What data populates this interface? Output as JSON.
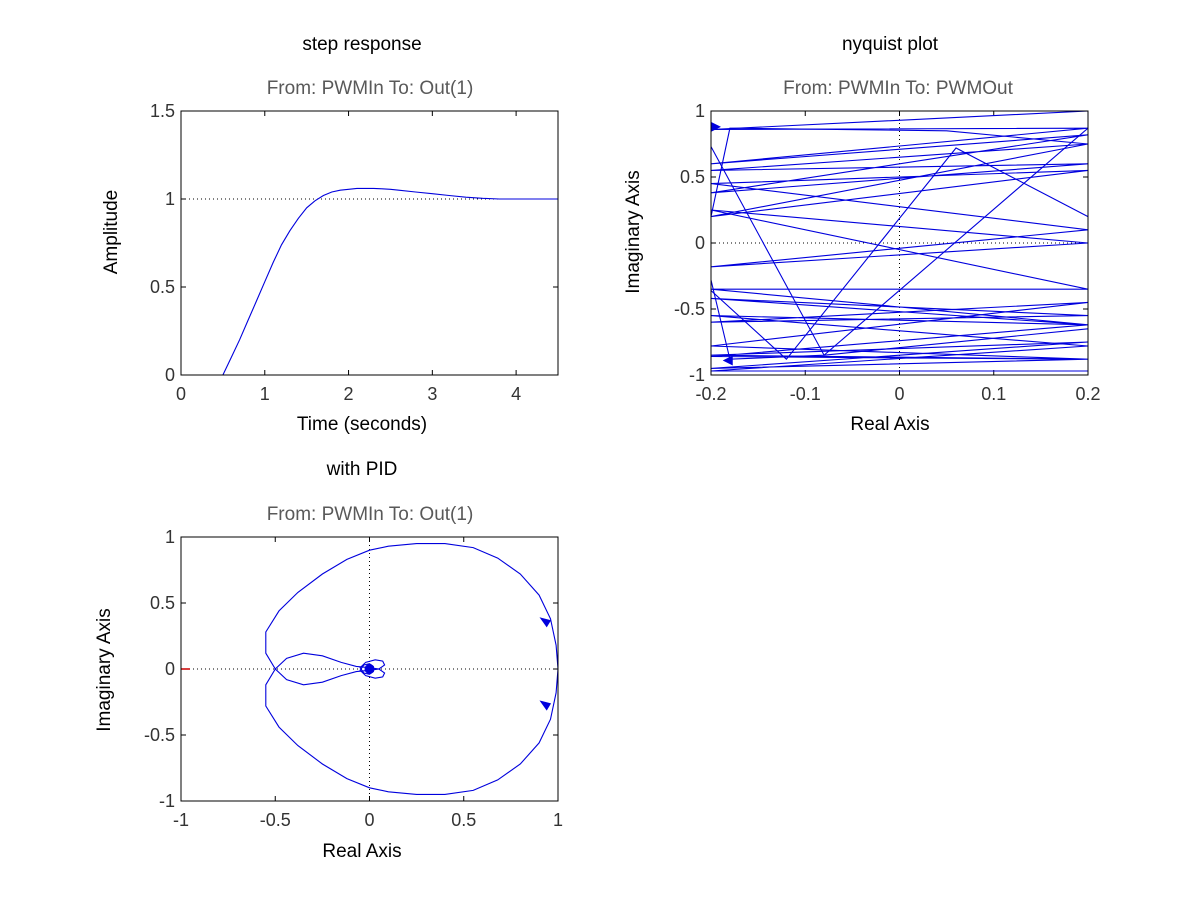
{
  "colors": {
    "background": "#ffffff",
    "axes_frame": "#000000",
    "curve": "#0000dd",
    "reference_line": "#000000",
    "subtitle_text": "#595959",
    "critical_point": "#cc0000"
  },
  "chart_data": [
    {
      "id": "step",
      "type": "line",
      "title": "step response",
      "subtitle": "From: PWMIn  To: Out(1)",
      "xlabel": "Time (seconds)",
      "ylabel": "Amplitude",
      "xlim": [
        0,
        4.5
      ],
      "ylim": [
        0,
        1.5
      ],
      "xticks": [
        0,
        1,
        2,
        3,
        4
      ],
      "xticklabels": [
        "0",
        "1",
        "2",
        "3",
        "4"
      ],
      "yticks": [
        0,
        0.5,
        1,
        1.5
      ],
      "yticklabels": [
        "0",
        "0.5",
        "1",
        "1.5"
      ],
      "grid": false,
      "reference_lines": [
        {
          "axis": "y",
          "value": 1,
          "style": "dotted"
        }
      ],
      "series": [
        {
          "x": [
            0,
            0.5,
            0.6,
            0.7,
            0.8,
            0.9,
            1.0,
            1.1,
            1.2,
            1.3,
            1.4,
            1.5,
            1.6,
            1.7,
            1.8,
            1.9,
            2.0,
            2.1,
            2.2,
            2.3,
            2.4,
            2.5,
            2.6,
            2.8,
            3.0,
            3.2,
            3.4,
            3.6,
            3.8,
            4.0,
            4.5
          ],
          "y": [
            0,
            0,
            0.1,
            0.2,
            0.31,
            0.42,
            0.53,
            0.64,
            0.74,
            0.82,
            0.89,
            0.95,
            0.99,
            1.02,
            1.04,
            1.05,
            1.055,
            1.06,
            1.06,
            1.06,
            1.058,
            1.055,
            1.05,
            1.04,
            1.03,
            1.02,
            1.01,
            1.004,
            1.0,
            1.0,
            1.0
          ]
        }
      ]
    },
    {
      "id": "nyquist",
      "type": "line",
      "title": "nyquist plot",
      "subtitle": "From: PWMIn  To: PWMOut",
      "xlabel": "Real Axis",
      "ylabel": "Imaginary Axis",
      "xlim": [
        -0.2,
        0.2
      ],
      "ylim": [
        -1,
        1
      ],
      "xticks": [
        -0.2,
        -0.1,
        0,
        0.1,
        0.2
      ],
      "xticklabels": [
        "-0.2",
        "-0.1",
        "0",
        "0.1",
        "0.2"
      ],
      "yticks": [
        -1,
        -0.5,
        0,
        0.5,
        1
      ],
      "yticklabels": [
        "-1",
        "-0.5",
        "0",
        "0.5",
        "1"
      ],
      "grid": false,
      "reference_lines": [
        {
          "axis": "x",
          "value": 0,
          "style": "dotted"
        },
        {
          "axis": "y",
          "value": 0,
          "style": "dotted"
        }
      ],
      "series": [
        {
          "x": [
            0.2,
            -0.2,
            0.2,
            -0.2,
            0.2,
            -0.2,
            0.2,
            -0.2,
            0.2,
            -0.2,
            0.2,
            -0.2,
            0.2,
            -0.2,
            0.2,
            -0.2,
            0.2,
            -0.2,
            0.2,
            -0.2,
            0.2,
            -0.2,
            0.2,
            -0.2,
            0.2,
            -0.2,
            0.2,
            -0.2,
            0.2,
            -0.2,
            0.2,
            -0.2,
            0.2,
            -0.2,
            0.2
          ],
          "y": [
            1.0,
            0.86,
            0.87,
            0.6,
            0.82,
            0.38,
            0.6,
            0.55,
            0.75,
            0.2,
            0.55,
            0.45,
            0.1,
            -0.18,
            0.0,
            0.25,
            -0.35,
            -0.35,
            -0.62,
            -0.42,
            -0.55,
            -0.6,
            -0.45,
            -0.78,
            -0.88,
            -0.85,
            -0.75,
            -0.95,
            -0.88,
            -0.86,
            -0.62,
            -0.55,
            -0.78,
            -0.97,
            -0.97
          ]
        },
        {
          "x": [
            -0.2,
            -0.18,
            0.05,
            0.2
          ],
          "y": [
            0.2,
            0.87,
            0.85,
            0.75
          ]
        },
        {
          "x": [
            -0.2,
            -0.18,
            -0.08,
            0.2
          ],
          "y": [
            -0.28,
            -0.88,
            -0.85,
            -0.65
          ]
        },
        {
          "x": [
            -0.2,
            -0.08,
            0.2
          ],
          "y": [
            0.73,
            -0.85,
            0.87
          ]
        },
        {
          "x": [
            -0.2,
            -0.12,
            0.06,
            0.2
          ],
          "y": [
            -0.36,
            -0.88,
            0.72,
            0.2
          ]
        }
      ],
      "arrows": [
        {
          "x": -0.197,
          "y": 0.88,
          "dir": "right"
        },
        {
          "x": -0.18,
          "y": -0.89,
          "dir": "left"
        }
      ]
    },
    {
      "id": "pid",
      "type": "line",
      "title": "with PID",
      "subtitle": "From: PWMIn  To: Out(1)",
      "xlabel": "Real Axis",
      "ylabel": "Imaginary Axis",
      "xlim": [
        -1,
        1
      ],
      "ylim": [
        -1,
        1
      ],
      "xticks": [
        -1,
        -0.5,
        0,
        0.5,
        1
      ],
      "xticklabels": [
        "-1",
        "-0.5",
        "0",
        "0.5",
        "1"
      ],
      "yticks": [
        -1,
        -0.5,
        0,
        0.5,
        1
      ],
      "yticklabels": [
        "-1",
        "-0.5",
        "0",
        "0.5",
        "1"
      ],
      "grid": false,
      "reference_lines": [
        {
          "axis": "x",
          "value": 0,
          "style": "dotted"
        },
        {
          "axis": "y",
          "value": 0,
          "style": "dotted"
        }
      ],
      "critical_point": {
        "x": -1,
        "y": 0
      },
      "series": [
        {
          "x": [
            1.0,
            0.99,
            0.96,
            0.9,
            0.8,
            0.68,
            0.55,
            0.4,
            0.25,
            0.1,
            0.0,
            -0.12,
            -0.25,
            -0.38,
            -0.48,
            -0.55,
            -0.55,
            -0.5,
            -0.44,
            -0.35,
            -0.25,
            -0.15,
            -0.07,
            0.0,
            0.05,
            0.08,
            0.07,
            0.03,
            -0.02,
            -0.05,
            -0.03,
            0.0,
            0.02,
            0.01,
            0.0
          ],
          "y": [
            0.0,
            0.18,
            0.38,
            0.56,
            0.72,
            0.84,
            0.92,
            0.95,
            0.95,
            0.93,
            0.9,
            0.83,
            0.72,
            0.58,
            0.44,
            0.28,
            0.12,
            0.0,
            -0.08,
            -0.12,
            -0.1,
            -0.05,
            -0.02,
            -0.01,
            0.0,
            0.03,
            0.06,
            0.07,
            0.05,
            0.01,
            -0.03,
            -0.04,
            -0.02,
            0.01,
            0.0
          ]
        },
        {
          "x": [
            1.0,
            0.99,
            0.96,
            0.9,
            0.8,
            0.68,
            0.55,
            0.4,
            0.25,
            0.1,
            0.0,
            -0.12,
            -0.25,
            -0.38,
            -0.48,
            -0.55,
            -0.55,
            -0.5,
            -0.44,
            -0.35,
            -0.25,
            -0.15,
            -0.07,
            0.0,
            0.05,
            0.08,
            0.07,
            0.03,
            -0.02,
            -0.05,
            -0.03,
            0.0,
            0.02,
            0.01,
            0.0
          ],
          "y": [
            0.0,
            -0.18,
            -0.38,
            -0.56,
            -0.72,
            -0.84,
            -0.92,
            -0.95,
            -0.95,
            -0.93,
            -0.9,
            -0.83,
            -0.72,
            -0.58,
            -0.44,
            -0.28,
            -0.12,
            0.0,
            0.08,
            0.12,
            0.1,
            0.05,
            0.02,
            0.01,
            0.0,
            -0.03,
            -0.06,
            -0.07,
            -0.05,
            -0.01,
            0.03,
            0.04,
            0.02,
            -0.01,
            0.0
          ]
        }
      ],
      "arrows": [
        {
          "x": 0.94,
          "y": 0.34,
          "dir": "down"
        },
        {
          "x": 0.94,
          "y": -0.29,
          "dir": "down"
        }
      ]
    }
  ]
}
